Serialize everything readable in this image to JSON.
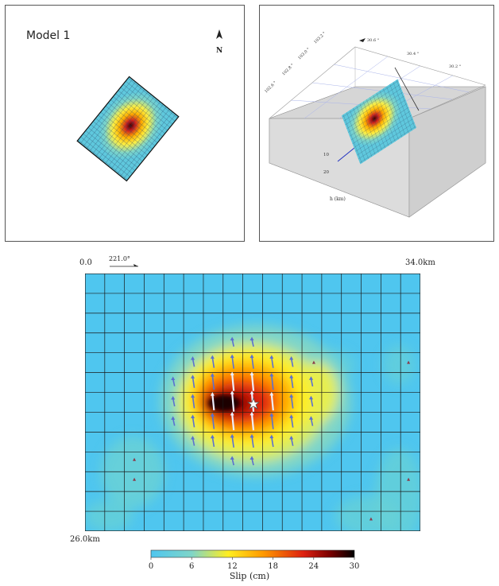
{
  "model_panel": {
    "title": "Model 1",
    "north": "N"
  },
  "perspective_panel": {
    "lon_ticks": [
      "30.6 °",
      "30.4 °",
      "30.2 °"
    ],
    "lat_ticks": [
      "103.2 °",
      "103.0 °",
      "102.8 °",
      "102.6 °"
    ],
    "depth_ticks": [
      "10",
      "20"
    ],
    "depth_axis_label": "h (km)"
  },
  "slip_map": {
    "origin_label": "0.0",
    "strike_label": "221.0°",
    "length_label": "34.0km",
    "width_label": "26.0km",
    "columns": 17,
    "rows": 13
  },
  "colorbar": {
    "ticks": [
      "0",
      "6",
      "12",
      "18",
      "24",
      "30"
    ],
    "label": "Slip (cm)",
    "min": 0,
    "max": 30
  },
  "colors": {
    "background_slip": "#4fc6ef",
    "low": "#5fd0d8",
    "mid": "#ffee00",
    "high": "#cc1010",
    "peak": "#000000",
    "arrow": "#5a70d0",
    "gray_base": "#d4d4d4"
  }
}
